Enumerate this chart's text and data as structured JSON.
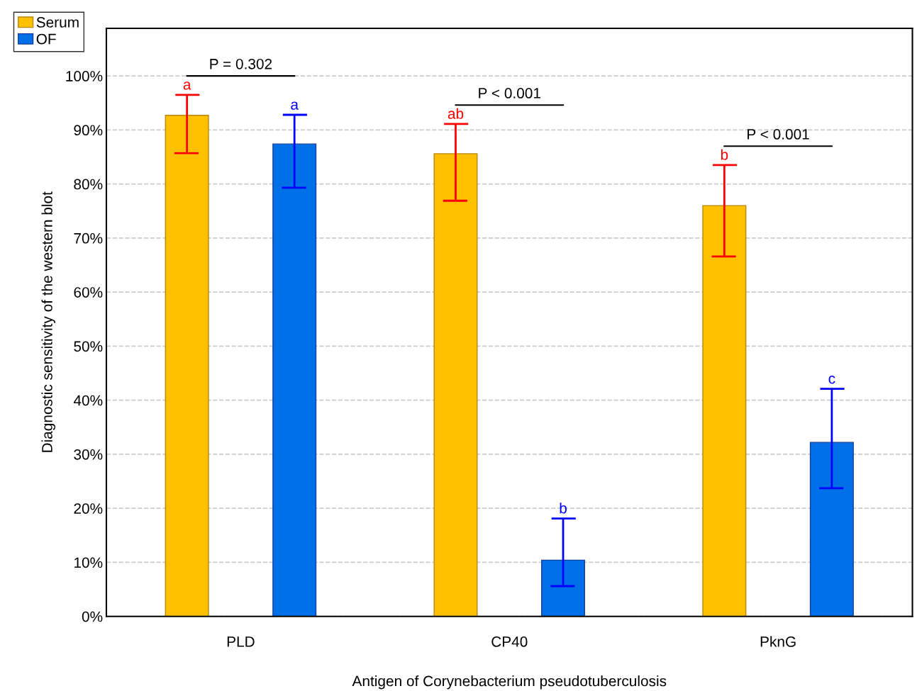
{
  "chart_data": {
    "type": "bar",
    "xlabel": "Antigen of Corynebacterium pseudotuberculosis",
    "ylabel": "Diagnostic sensitivity of the western blot",
    "categories": [
      "PLD",
      "CP40",
      "PknG"
    ],
    "series": [
      {
        "name": "Serum",
        "color": "#ffc000",
        "values": [
          92.7,
          85.6,
          76.0
        ],
        "errors": [
          [
            85.7,
            96.5
          ],
          [
            76.9,
            91.1
          ],
          [
            66.6,
            83.5
          ]
        ]
      },
      {
        "name": "OF",
        "color": "#0070e8",
        "values": [
          87.4,
          10.4,
          32.2
        ],
        "errors": [
          [
            79.3,
            92.8
          ],
          [
            5.6,
            18.1
          ],
          [
            23.7,
            42.1
          ]
        ]
      }
    ],
    "ylim": [
      0,
      108.8
    ],
    "yticks": [
      {
        "value": 0,
        "label": "0%"
      },
      {
        "value": 10,
        "label": "10%"
      },
      {
        "value": 20,
        "label": "20%"
      },
      {
        "value": 30,
        "label": "30%"
      },
      {
        "value": 40,
        "label": "40%"
      },
      {
        "value": 50,
        "label": "50%"
      },
      {
        "value": 60,
        "label": "60%"
      },
      {
        "value": 70,
        "label": "70%"
      },
      {
        "value": 80,
        "label": "80%"
      },
      {
        "value": 90,
        "label": "90%"
      },
      {
        "value": 100,
        "label": "100%"
      }
    ],
    "annotations": [
      "a",
      "a",
      "ab",
      "b",
      "b",
      "c",
      "P = 0.302",
      "P < 0.001",
      "P < 0.001"
    ],
    "grid": "y",
    "legend": "top left"
  }
}
